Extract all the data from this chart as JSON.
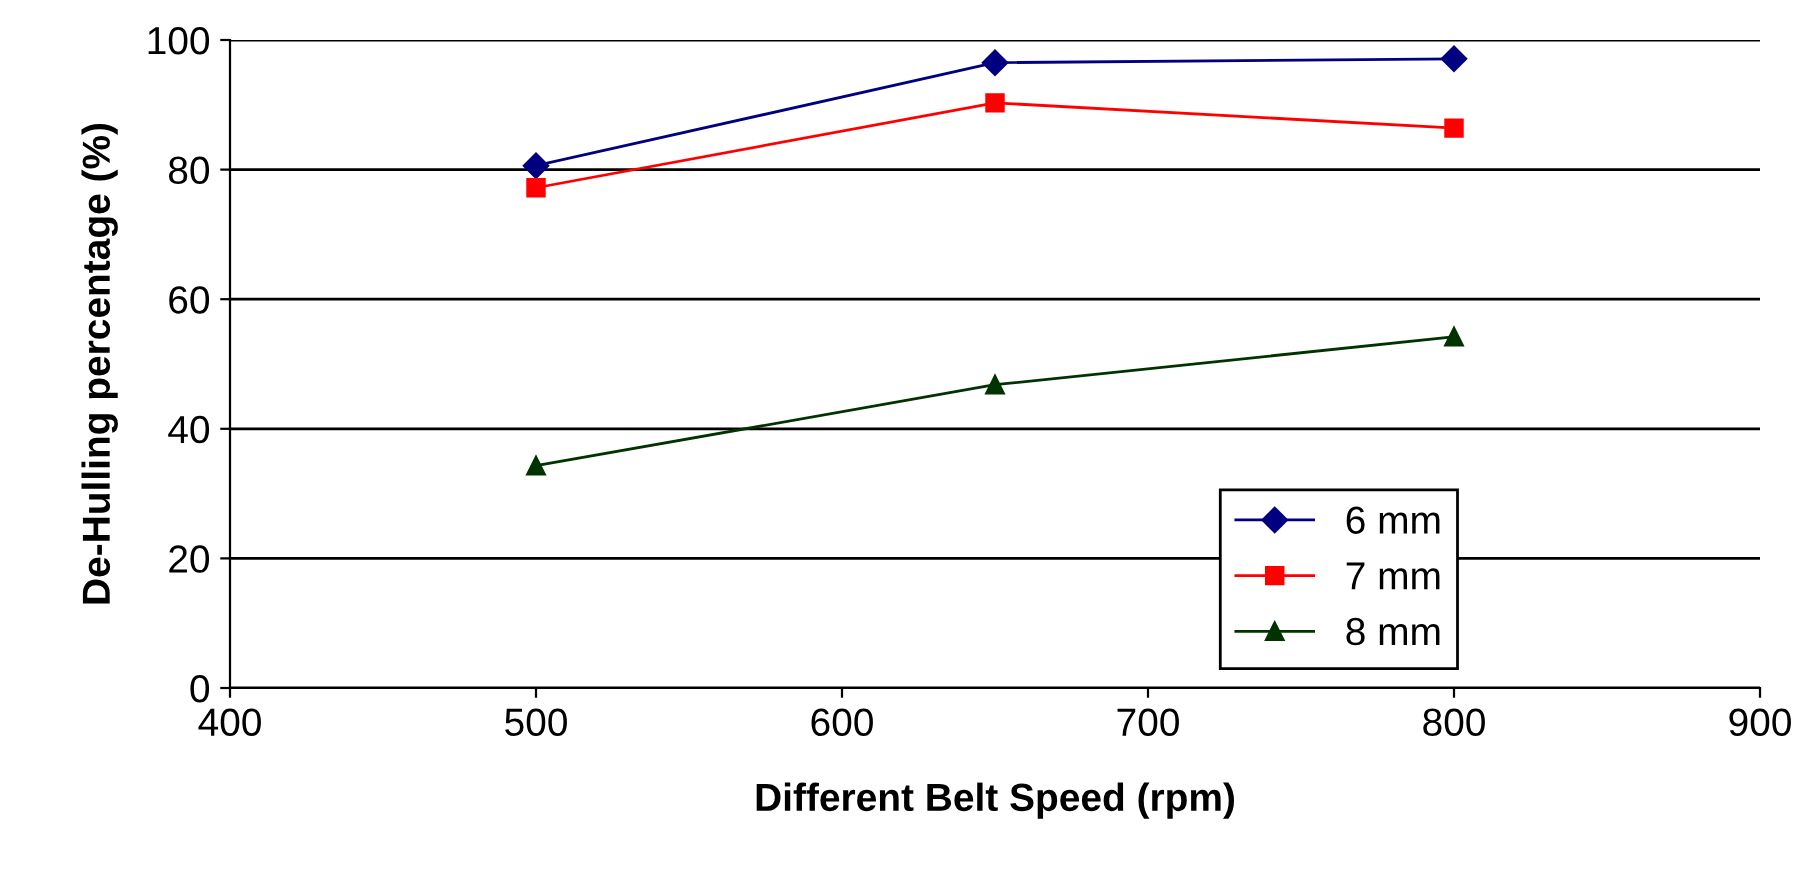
{
  "chart_data": {
    "type": "line",
    "xlabel": "Different Belt Speed (rpm)",
    "ylabel": "De-Hulling percentage (%)",
    "x": [
      500,
      650,
      800
    ],
    "series": [
      {
        "name": "6 mm",
        "color": "#000080",
        "marker": "diamond",
        "values": [
          80.6,
          96.5,
          97.1
        ]
      },
      {
        "name": "7 mm",
        "color": "#ff0000",
        "marker": "square",
        "values": [
          77.2,
          90.3,
          86.4
        ]
      },
      {
        "name": "8 mm",
        "color": "#003300",
        "marker": "triangle",
        "values": [
          34.3,
          46.8,
          54.2
        ]
      }
    ],
    "xlim": [
      400,
      900
    ],
    "xticks": [
      400,
      500,
      600,
      700,
      800,
      900
    ],
    "ylim": [
      0,
      100
    ],
    "yticks": [
      0,
      20,
      40,
      60,
      80,
      100
    ],
    "grid": "y",
    "legend": "bottom right",
    "line_style": "solid"
  }
}
